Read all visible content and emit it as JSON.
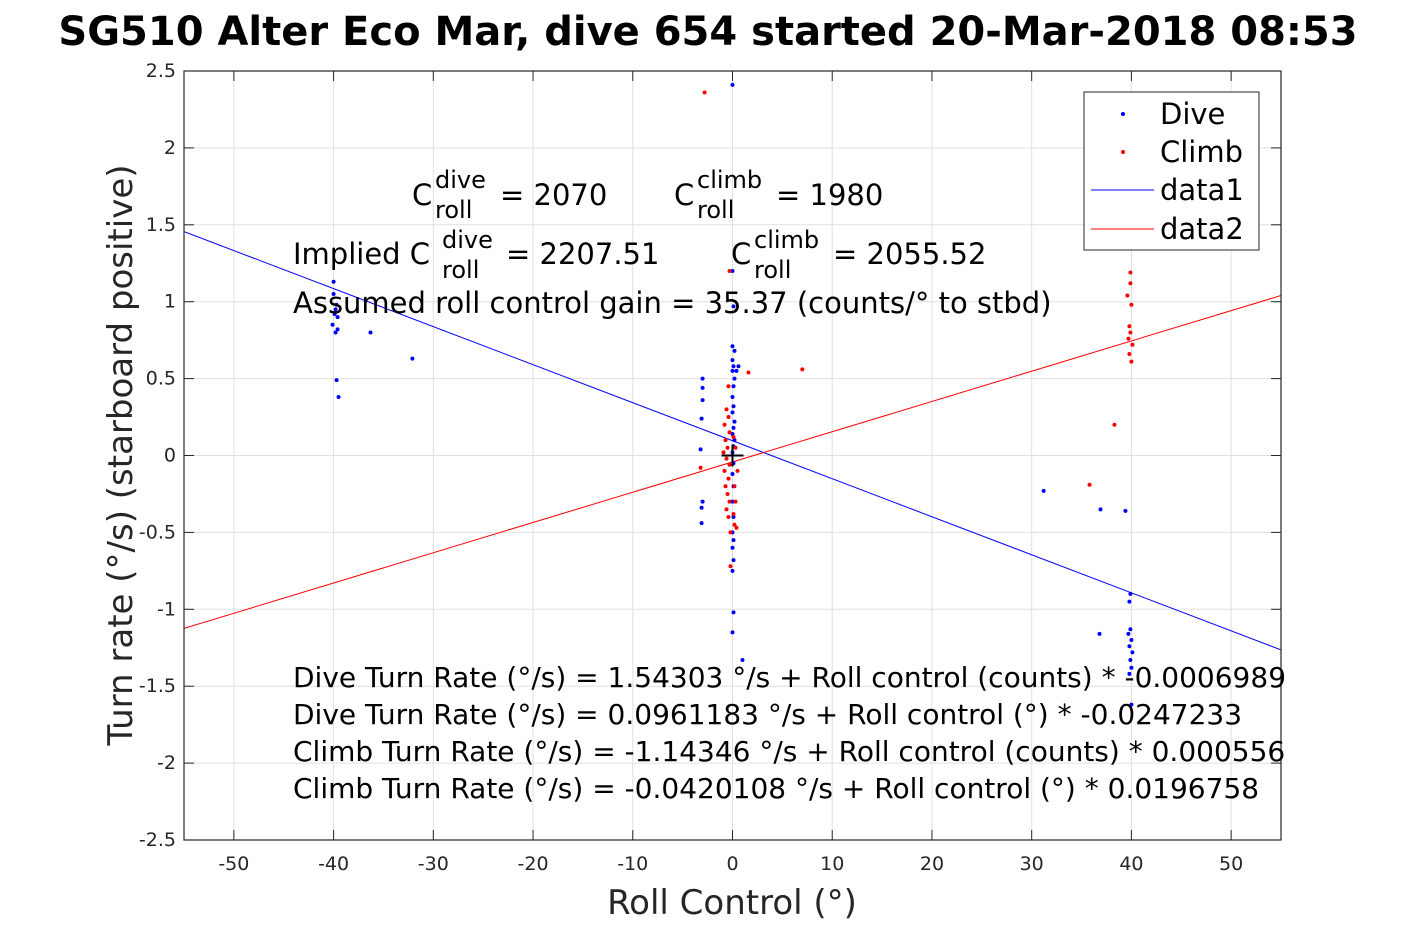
{
  "chart_data": {
    "type": "scatter",
    "title": "SG510 Alter Eco Mar, dive 654 started 20-Mar-2018 08:53",
    "xlabel": "Roll Control (°)",
    "ylabel": "Turn rate (°/s) (starboard positive)",
    "xlim": [
      -55,
      55
    ],
    "ylim": [
      -2.5,
      2.5
    ],
    "xticks": [
      -50,
      -40,
      -30,
      -20,
      -10,
      0,
      10,
      20,
      30,
      40,
      50
    ],
    "xtick_labels": [
      "-50",
      "-40",
      "-30",
      "-20",
      "-10",
      "0",
      "10",
      "20",
      "30",
      "40",
      "50"
    ],
    "yticks": [
      -2.5,
      -2,
      -1.5,
      -1,
      -0.5,
      0,
      0.5,
      1,
      1.5,
      2,
      2.5
    ],
    "ytick_labels": [
      "-2.5",
      "-2",
      "-1.5",
      "-1",
      "-0.5",
      "0",
      "0.5",
      "1",
      "1.5",
      "2",
      "2.5"
    ],
    "grid": true,
    "legend_position": "top-right",
    "series": [
      {
        "name": "Dive",
        "kind": "points",
        "color": "#0000ff",
        "points": [
          [
            -40,
            1.13
          ],
          [
            -40,
            1.05
          ],
          [
            -39.7,
            0.98
          ],
          [
            -39.8,
            0.95
          ],
          [
            -39.9,
            0.92
          ],
          [
            -39.6,
            0.9
          ],
          [
            -40.1,
            0.85
          ],
          [
            -39.6,
            0.82
          ],
          [
            -39.8,
            0.8
          ],
          [
            -36.3,
            0.8
          ],
          [
            -32.1,
            0.63
          ],
          [
            -39.7,
            0.49
          ],
          [
            -39.5,
            0.38
          ],
          [
            -3,
            0.5
          ],
          [
            -3,
            0.44
          ],
          [
            -3,
            0.36
          ],
          [
            -3.1,
            0.24
          ],
          [
            -3.2,
            0.04
          ],
          [
            -3,
            -0.3
          ],
          [
            -3.1,
            -0.34
          ],
          [
            -3.1,
            -0.44
          ],
          [
            0,
            2.41
          ],
          [
            0,
            1.2
          ],
          [
            0.1,
            0.97
          ],
          [
            0,
            0.71
          ],
          [
            0.2,
            0.68
          ],
          [
            0,
            0.62
          ],
          [
            0.1,
            0.58
          ],
          [
            0,
            0.55
          ],
          [
            0.2,
            0.5
          ],
          [
            0.1,
            0.45
          ],
          [
            0,
            0.38
          ],
          [
            0.1,
            0.32
          ],
          [
            0,
            0.28
          ],
          [
            0.2,
            0.22
          ],
          [
            0.1,
            0.18
          ],
          [
            0,
            0.14
          ],
          [
            0.2,
            0.1
          ],
          [
            0.1,
            0.06
          ],
          [
            0,
            0.02
          ],
          [
            0.1,
            -0.05
          ],
          [
            0,
            -0.12
          ],
          [
            0.1,
            -0.2
          ],
          [
            0,
            -0.3
          ],
          [
            0.1,
            -0.4
          ],
          [
            0,
            -0.5
          ],
          [
            0.1,
            -0.55
          ],
          [
            0,
            -0.6
          ],
          [
            0.1,
            -0.68
          ],
          [
            0,
            -0.75
          ],
          [
            0.1,
            -1.02
          ],
          [
            0,
            -1.15
          ],
          [
            1,
            -1.33
          ],
          [
            0.6,
            0.58
          ],
          [
            0.4,
            0.55
          ],
          [
            31.2,
            -0.23
          ],
          [
            36.9,
            -0.35
          ],
          [
            39.4,
            -0.36
          ],
          [
            36.8,
            -1.16
          ],
          [
            39.9,
            -0.9
          ],
          [
            39.8,
            -0.95
          ],
          [
            39.9,
            -1.13
          ],
          [
            39.7,
            -1.16
          ],
          [
            40,
            -1.2
          ],
          [
            39.8,
            -1.24
          ],
          [
            40.1,
            -1.28
          ],
          [
            39.9,
            -1.33
          ],
          [
            40,
            -1.38
          ],
          [
            39.8,
            -1.42
          ],
          [
            40,
            -1.62
          ]
        ]
      },
      {
        "name": "Climb",
        "kind": "points",
        "color": "#ff0000",
        "points": [
          [
            -2.8,
            2.36
          ],
          [
            -0.3,
            1.2
          ],
          [
            1.6,
            0.54
          ],
          [
            7,
            0.56
          ],
          [
            -0.4,
            0.45
          ],
          [
            -0.6,
            0.3
          ],
          [
            -0.4,
            0.25
          ],
          [
            -0.8,
            0.2
          ],
          [
            -0.3,
            0.15
          ],
          [
            -0.7,
            0.1
          ],
          [
            -0.5,
            0.05
          ],
          [
            -0.9,
            0.02
          ],
          [
            -0.6,
            -0.02
          ],
          [
            -0.3,
            -0.06
          ],
          [
            -0.8,
            -0.1
          ],
          [
            -0.4,
            -0.15
          ],
          [
            -0.7,
            -0.2
          ],
          [
            -0.5,
            -0.25
          ],
          [
            -0.3,
            -0.3
          ],
          [
            -0.6,
            -0.35
          ],
          [
            -0.4,
            -0.4
          ],
          [
            0.2,
            -0.45
          ],
          [
            -0.2,
            -0.5
          ],
          [
            0.4,
            -0.47
          ],
          [
            0.1,
            -0.38
          ],
          [
            0.3,
            -0.3
          ],
          [
            0.2,
            -0.2
          ],
          [
            0.5,
            -0.1
          ],
          [
            0.3,
            0.05
          ],
          [
            0.1,
            0.12
          ],
          [
            -3.2,
            -0.08
          ],
          [
            -0.2,
            -0.72
          ],
          [
            39.9,
            1.19
          ],
          [
            39.9,
            1.12
          ],
          [
            39.6,
            1.04
          ],
          [
            40,
            0.98
          ],
          [
            39.8,
            0.84
          ],
          [
            39.9,
            0.8
          ],
          [
            39.7,
            0.76
          ],
          [
            40.1,
            0.72
          ],
          [
            39.8,
            0.66
          ],
          [
            40,
            0.61
          ],
          [
            38.3,
            0.2
          ],
          [
            35.8,
            -0.19
          ]
        ]
      },
      {
        "name": "data1",
        "kind": "line",
        "color": "#0000ff",
        "intercept": 0.0961183,
        "slope": -0.0247233,
        "x": [
          -55,
          55
        ]
      },
      {
        "name": "data2",
        "kind": "line",
        "color": "#ff0000",
        "intercept": -0.0420108,
        "slope": 0.0196758,
        "x": [
          -55,
          55
        ]
      }
    ],
    "marker": {
      "x": 0,
      "y": 0,
      "symbol": "plus",
      "color": "#000000"
    },
    "annotations": {
      "c_roll_dive": {
        "base": "C",
        "sup": "dive",
        "sub": "roll",
        "value": "= 2070"
      },
      "c_roll_climb": {
        "base": "C",
        "sup": "climb",
        "sub": "roll",
        "value": "= 1980"
      },
      "implied_dive": {
        "prefix": "Implied C",
        "sup": "dive",
        "sub": "roll",
        "value": "= 2207.51"
      },
      "implied_climb": {
        "base": "C",
        "sup": "climb",
        "sub": "roll",
        "value": "= 2055.52"
      },
      "gain": "Assumed roll control gain = 35.37 (counts/° to stbd)",
      "equations": [
        "Dive Turn Rate (°/s) = 1.54303 °/s + Roll control (counts) * -0.0006989",
        "Dive Turn Rate (°/s) = 0.0961183 °/s + Roll control (°) * -0.0247233",
        "Climb Turn Rate (°/s) = -1.14346 °/s + Roll control (counts) * 0.000556",
        "Climb Turn Rate (°/s) = -0.0420108 °/s + Roll control (°) * 0.0196758"
      ]
    }
  }
}
